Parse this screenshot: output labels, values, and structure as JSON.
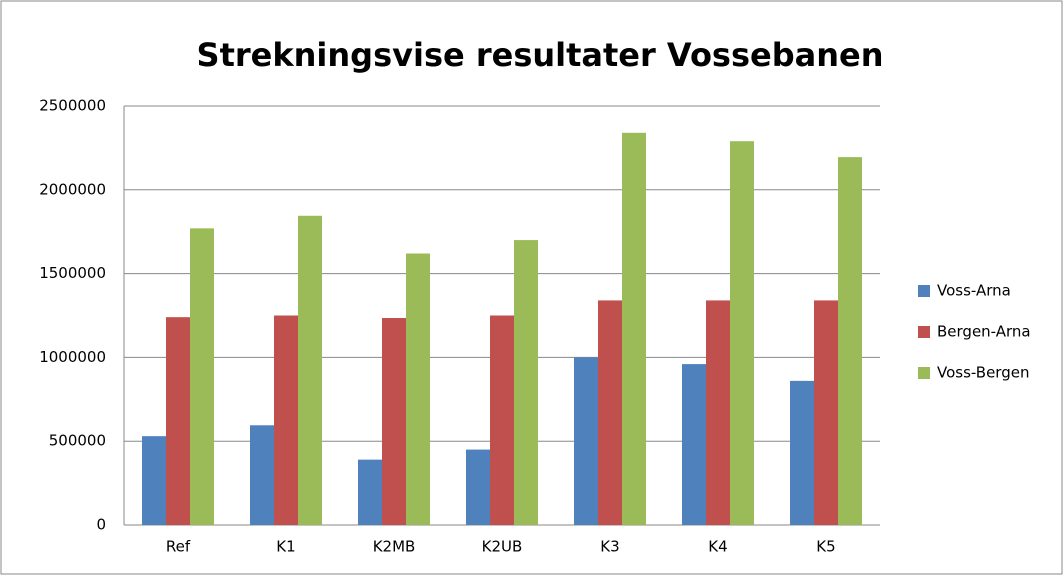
{
  "chart_data": {
    "type": "bar",
    "title": "Strekningsvise resultater Vossebanen",
    "categories": [
      "Ref",
      "K1",
      "K2MB",
      "K2UB",
      "K3",
      "K4",
      "K5"
    ],
    "series": [
      {
        "name": "Voss-Arna",
        "color": "#4f81bd",
        "values": [
          530000,
          595000,
          390000,
          450000,
          1000000,
          960000,
          860000
        ]
      },
      {
        "name": "Bergen-Arna",
        "color": "#c0504d",
        "values": [
          1240000,
          1250000,
          1235000,
          1250000,
          1340000,
          1340000,
          1340000
        ]
      },
      {
        "name": "Voss-Bergen",
        "color": "#9bbb59",
        "values": [
          1770000,
          1845000,
          1620000,
          1700000,
          2340000,
          2290000,
          2195000
        ]
      }
    ],
    "ylim": [
      0,
      2500000
    ],
    "yticks": [
      0,
      500000,
      1000000,
      1500000,
      2000000,
      2500000
    ],
    "grid": true,
    "legend": "right"
  }
}
